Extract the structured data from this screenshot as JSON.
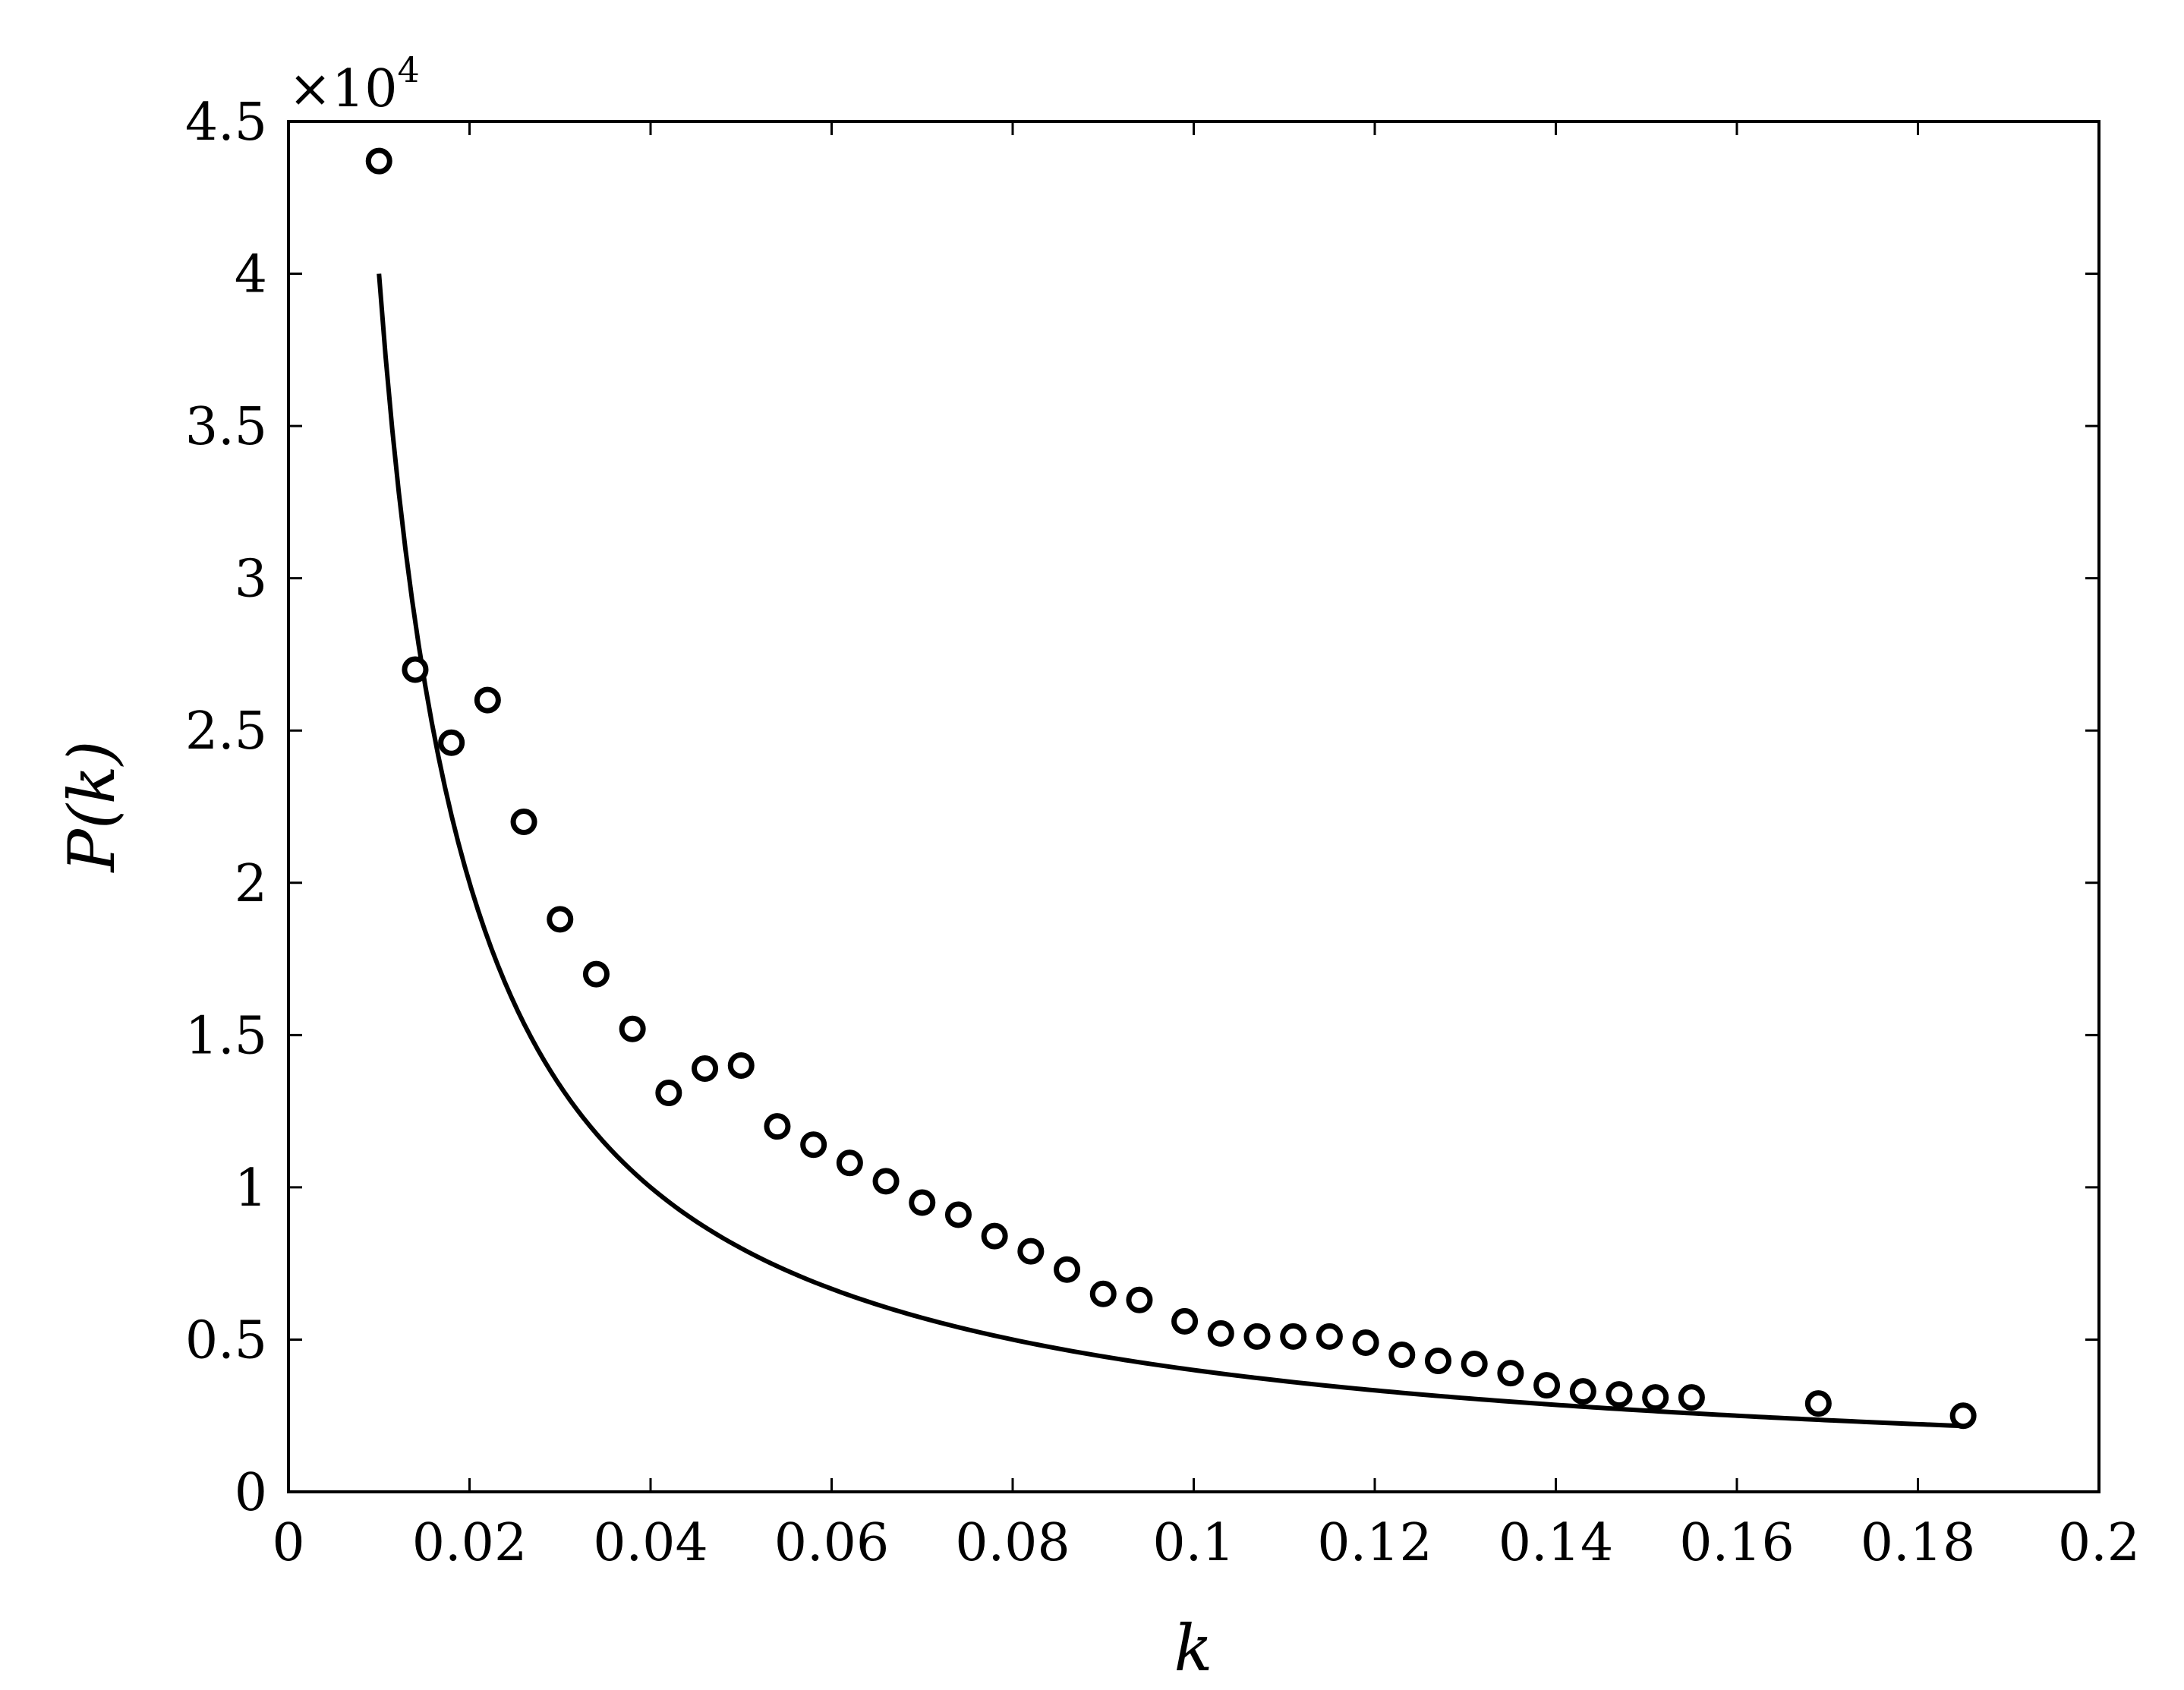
{
  "chart_data": {
    "type": "scatter",
    "title": "",
    "xlabel": "k",
    "ylabel": "P(k)",
    "y_multiplier_base": "×10",
    "y_multiplier_exponent": "4",
    "xlim": [
      0,
      0.2
    ],
    "ylim": [
      0,
      4.5
    ],
    "x_ticks": [
      0,
      0.02,
      0.04,
      0.06,
      0.08,
      0.1,
      0.12,
      0.14,
      0.16,
      0.18,
      0.2
    ],
    "x_tick_labels": [
      "0",
      "0.02",
      "0.04",
      "0.06",
      "0.08",
      "0.1",
      "0.12",
      "0.14",
      "0.16",
      "0.18",
      "0.2"
    ],
    "y_ticks": [
      0,
      0.5,
      1,
      1.5,
      2,
      2.5,
      3,
      3.5,
      4,
      4.5
    ],
    "y_tick_labels": [
      "0",
      "0.5",
      "1",
      "1.5",
      "2",
      "2.5",
      "3",
      "3.5",
      "4",
      "4.5"
    ],
    "grid": false,
    "box": true,
    "series": [
      {
        "kind": "markers",
        "marker": "open-circle",
        "color": "#000000",
        "x": [
          0.01,
          0.014,
          0.018,
          0.022,
          0.026,
          0.03,
          0.034,
          0.038,
          0.042,
          0.046,
          0.05,
          0.054,
          0.058,
          0.062,
          0.066,
          0.07,
          0.074,
          0.078,
          0.082,
          0.086,
          0.09,
          0.094,
          0.099,
          0.103,
          0.107,
          0.111,
          0.115,
          0.119,
          0.123,
          0.127,
          0.131,
          0.135,
          0.139,
          0.143,
          0.147,
          0.151,
          0.155,
          0.169,
          0.185
        ],
        "y": [
          4.37,
          2.7,
          2.46,
          2.6,
          2.2,
          1.88,
          1.7,
          1.52,
          1.31,
          1.39,
          1.4,
          1.2,
          1.14,
          1.08,
          1.02,
          0.95,
          0.91,
          0.84,
          0.79,
          0.73,
          0.65,
          0.63,
          0.56,
          0.52,
          0.51,
          0.51,
          0.51,
          0.49,
          0.45,
          0.43,
          0.42,
          0.39,
          0.35,
          0.33,
          0.32,
          0.31,
          0.31,
          0.29,
          0.25
        ]
      },
      {
        "kind": "line",
        "color": "#000000",
        "x_range": [
          0.01,
          0.185
        ],
        "model": "a/k",
        "a": 400
      }
    ]
  }
}
